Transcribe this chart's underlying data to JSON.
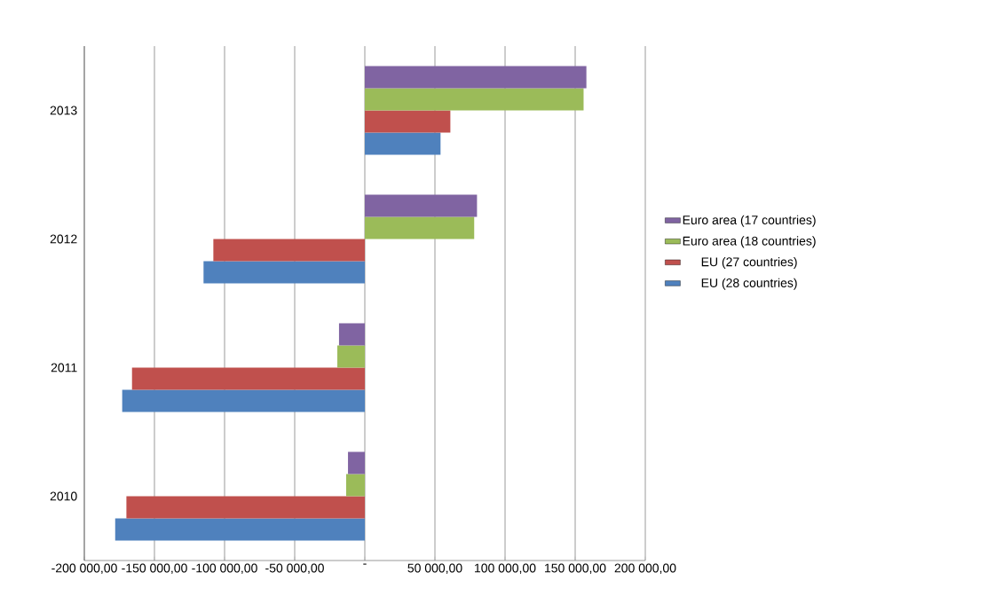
{
  "chart_data": {
    "type": "bar",
    "orientation": "horizontal",
    "categories": [
      "2013",
      "2012",
      "2011",
      "2010"
    ],
    "series": [
      {
        "name": "EU (28 countries)",
        "color": "#4f81bd",
        "values": [
          54000,
          -115000,
          -173000,
          -178000
        ]
      },
      {
        "name": "EU (27 countries)",
        "color": "#c0504d",
        "values": [
          61000,
          -108000,
          -166000,
          -170000
        ]
      },
      {
        "name": "Euro area (18 countries)",
        "color": "#9bbb59",
        "values": [
          156000,
          78000,
          -19600,
          -13300
        ]
      },
      {
        "name": "Euro area (17 countries)",
        "color": "#8064a2",
        "values": [
          158000,
          80000,
          -18400,
          -12000
        ]
      }
    ],
    "xlim": [
      -200000,
      200000
    ],
    "xticks": [
      {
        "value": -200000,
        "label": "-200 000,00"
      },
      {
        "value": -150000,
        "label": "-150 000,00"
      },
      {
        "value": -100000,
        "label": "-100 000,00"
      },
      {
        "value": -50000,
        "label": "-50 000,00"
      },
      {
        "value": 0,
        "label": "-"
      },
      {
        "value": 50000,
        "label": "50 000,00"
      },
      {
        "value": 100000,
        "label": "100 000,00"
      },
      {
        "value": 150000,
        "label": "150 000,00"
      },
      {
        "value": 200000,
        "label": "200 000,00"
      }
    ],
    "grid": "x",
    "legend": "right"
  }
}
